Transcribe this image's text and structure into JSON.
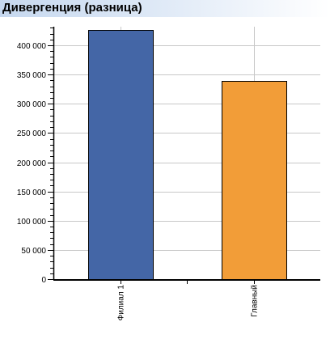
{
  "title": "Дивергенция (разница)",
  "chart_data": {
    "type": "bar",
    "title": "Дивергенция (разница)",
    "xlabel": "",
    "ylabel": "",
    "categories": [
      "Филиал 1",
      "Главный"
    ],
    "values": [
      426000,
      339000
    ],
    "colors": [
      "#4466a6",
      "#f29d38"
    ],
    "yticks": [
      0,
      50000,
      100000,
      150000,
      200000,
      250000,
      300000,
      350000,
      400000
    ],
    "ytick_labels": [
      "0",
      "50 000",
      "100 000",
      "150 000",
      "200 000",
      "250 000",
      "300 000",
      "350 000",
      "400 000"
    ],
    "ylim": [
      0,
      430000
    ],
    "grid": true,
    "legend": "none"
  }
}
